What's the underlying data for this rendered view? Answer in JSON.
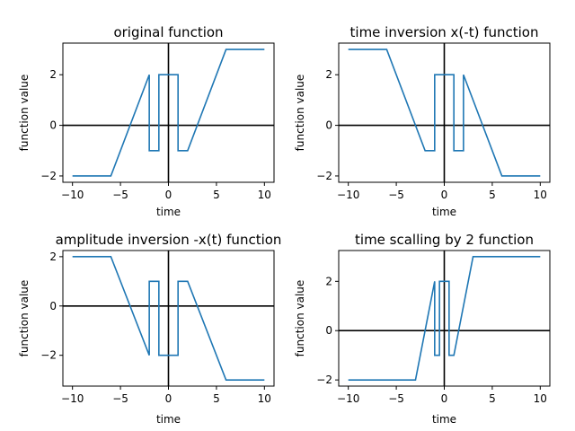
{
  "colors": {
    "series": "#1f77b4",
    "axes": "#000000",
    "background": "#ffffff"
  },
  "chart_data": [
    {
      "type": "line",
      "title": "original function",
      "xlabel": "time",
      "ylabel": "function value",
      "xlim": [
        -11,
        11
      ],
      "ylim": [
        -2.25,
        3.25
      ],
      "xticks": [
        -10,
        -5,
        0,
        5,
        10
      ],
      "yticks": [
        -2,
        0,
        2
      ],
      "grid": false,
      "reference_lines": {
        "x": 0,
        "y": 0
      },
      "series": [
        {
          "x": [
            -10,
            -6,
            -2,
            -2,
            -1.5,
            -1.5,
            -1,
            -1,
            1,
            1,
            1.5,
            1.5,
            2,
            6,
            10
          ],
          "y": [
            -2,
            -2,
            2,
            -1,
            -1,
            -1,
            -1,
            2,
            2,
            -1,
            -1,
            -1,
            -1,
            3,
            3
          ]
        }
      ]
    },
    {
      "type": "line",
      "title": "time inversion x(-t) function",
      "xlabel": "time",
      "ylabel": "function value",
      "xlim": [
        -11,
        11
      ],
      "ylim": [
        -2.25,
        3.25
      ],
      "xticks": [
        -10,
        -5,
        0,
        5,
        10
      ],
      "yticks": [
        -2,
        0,
        2
      ],
      "grid": false,
      "reference_lines": {
        "x": 0,
        "y": 0
      },
      "series": [
        {
          "x": [
            -10,
            -6,
            -2,
            -1.5,
            -1,
            -1,
            1,
            1,
            1.5,
            2,
            2,
            6,
            10
          ],
          "y": [
            3,
            3,
            -1,
            -1,
            -1,
            2,
            2,
            -1,
            -1,
            -1,
            2,
            -2,
            -2
          ]
        }
      ]
    },
    {
      "type": "line",
      "title": "amplitude inversion -x(t) function",
      "xlabel": "time",
      "ylabel": "function value",
      "xlim": [
        -11,
        11
      ],
      "ylim": [
        -3.25,
        2.25
      ],
      "xticks": [
        -10,
        -5,
        0,
        5,
        10
      ],
      "yticks": [
        -2,
        0,
        2
      ],
      "grid": false,
      "reference_lines": {
        "x": 0,
        "y": 0
      },
      "series": [
        {
          "x": [
            -10,
            -6,
            -2,
            -2,
            -1.5,
            -1,
            -1,
            1,
            1,
            1.5,
            2,
            6,
            10
          ],
          "y": [
            2,
            2,
            -2,
            1,
            1,
            1,
            -2,
            -2,
            1,
            1,
            1,
            -3,
            -3
          ]
        }
      ]
    },
    {
      "type": "line",
      "title": "time scalling by 2 function",
      "xlabel": "time",
      "ylabel": "function value",
      "xlim": [
        -11,
        11
      ],
      "ylim": [
        -2.25,
        3.25
      ],
      "xticks": [
        -10,
        -5,
        0,
        5,
        10
      ],
      "yticks": [
        -2,
        0,
        2
      ],
      "grid": false,
      "reference_lines": {
        "x": 0,
        "y": 0
      },
      "series": [
        {
          "x": [
            -10,
            -3,
            -1,
            -1,
            -0.75,
            -0.5,
            -0.5,
            0.5,
            0.5,
            0.75,
            1,
            3,
            10
          ],
          "y": [
            -2,
            -2,
            2,
            -1,
            -1,
            -1,
            2,
            2,
            -1,
            -1,
            -1,
            3,
            3
          ]
        }
      ]
    }
  ]
}
